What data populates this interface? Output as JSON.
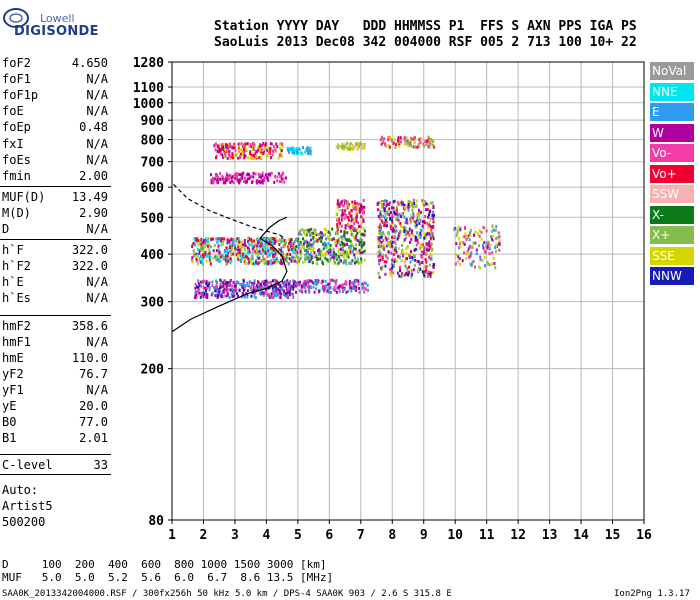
{
  "logo": {
    "top_text": "Lowell",
    "main_text": "DIGISONDE",
    "brand_color": "#1e3c8c"
  },
  "header": {
    "line1": "Station YYYY DAY   DDD HHMMSS P1  FFS S AXN PPS IGA PS",
    "line2": "SaoLuis 2013 Dec08 342 004000 RSF 005 2 713 100 10+ 22"
  },
  "params": [
    {
      "key": "foF2",
      "value": "4.650"
    },
    {
      "key": "foF1",
      "value": "N/A"
    },
    {
      "key": "foF1p",
      "value": "N/A"
    },
    {
      "key": "foE",
      "value": "N/A"
    },
    {
      "key": "foEp",
      "value": "0.48"
    },
    {
      "key": "fxI",
      "value": "N/A"
    },
    {
      "key": "foEs",
      "value": "N/A"
    },
    {
      "key": "fmin",
      "value": "2.00"
    },
    {
      "key": "MUF(D)",
      "value": "13.49"
    },
    {
      "key": "M(D)",
      "value": "2.90"
    },
    {
      "key": "D",
      "value": "N/A"
    },
    {
      "key": "h`F",
      "value": "322.0"
    },
    {
      "key": "h`F2",
      "value": "322.0"
    },
    {
      "key": "h`E",
      "value": "N/A"
    },
    {
      "key": "h`Es",
      "value": "N/A"
    },
    {
      "key": "hmF2",
      "value": "358.6"
    },
    {
      "key": "hmF1",
      "value": "N/A"
    },
    {
      "key": "hmE",
      "value": "110.0"
    },
    {
      "key": "yF2",
      "value": "76.7"
    },
    {
      "key": "yF1",
      "value": "N/A"
    },
    {
      "key": "yE",
      "value": "20.0"
    },
    {
      "key": "B0",
      "value": "77.0"
    },
    {
      "key": "B1",
      "value": "2.01"
    },
    {
      "key": "C-level",
      "value": "33"
    }
  ],
  "auto_block": {
    "line1": "Auto:",
    "line2": "Artist5",
    "line3": "500200"
  },
  "legend": [
    {
      "label": "NoVal",
      "color": "#9a9a9a"
    },
    {
      "label": "NNE",
      "color": "#00e5ee"
    },
    {
      "label": "E",
      "color": "#2e9bf0"
    },
    {
      "label": "W",
      "color": "#b0009f"
    },
    {
      "label": "Vo-",
      "color": "#f23ca7"
    },
    {
      "label": "Vo+",
      "color": "#ee0030"
    },
    {
      "label": "SSW",
      "color": "#f5b2b2"
    },
    {
      "label": "X-",
      "color": "#0d7a1a"
    },
    {
      "label": "X+",
      "color": "#84bd4b"
    },
    {
      "label": "SSE",
      "color": "#d5d500"
    },
    {
      "label": "NNW",
      "color": "#1a1ab6"
    }
  ],
  "footer": {
    "d_row": "D     100  200  400  600  800 1000 1500 3000 [km]",
    "muf_row": "MUF   5.0  5.0  5.2  5.6  6.0  6.7  8.6 13.5 [MHz]",
    "file_line": "SAA0K_2013342004000.RSF / 300fx256h 50 kHz 5.0 km / DPS-4 SAA0K 903 / 2.6 S 315.8 E",
    "version": "Ion2Png 1.3.17"
  },
  "chart_data": {
    "type": "scatter",
    "title": "",
    "xlabel": "",
    "ylabel": "",
    "xlim": [
      1,
      16
    ],
    "ylim": [
      80,
      1280
    ],
    "x_ticks": [
      1,
      2,
      3,
      4,
      5,
      6,
      7,
      8,
      9,
      10,
      11,
      12,
      13,
      14,
      15,
      16
    ],
    "y_ticks": [
      80,
      200,
      300,
      400,
      500,
      600,
      700,
      800,
      900,
      1000,
      1100,
      1280
    ],
    "y_scale": "log",
    "grid": true,
    "legend_position": "right",
    "trace_bands": [
      {
        "fmin": 1.7,
        "fmax": 4.9,
        "hmin": 310,
        "hmax": 345,
        "colors": [
          "#b0009f",
          "#f23ca7",
          "#2e9bf0",
          "#1a1ab6"
        ],
        "count": 360
      },
      {
        "fmin": 4.9,
        "fmax": 7.2,
        "hmin": 320,
        "hmax": 345,
        "colors": [
          "#b0009f",
          "#f23ca7",
          "#2e9bf0"
        ],
        "count": 160
      },
      {
        "fmin": 1.6,
        "fmax": 4.9,
        "hmin": 380,
        "hmax": 445,
        "colors": [
          "#ee0030",
          "#d5d500",
          "#84bd4b",
          "#b0009f",
          "#2e9bf0",
          "#00e5ee"
        ],
        "count": 520
      },
      {
        "fmin": 4.9,
        "fmax": 7.1,
        "hmin": 380,
        "hmax": 470,
        "colors": [
          "#d5d500",
          "#84bd4b",
          "#2e9bf0",
          "#b0009f",
          "#0d7a1a"
        ],
        "count": 360
      },
      {
        "fmin": 6.2,
        "fmax": 7.1,
        "hmin": 470,
        "hmax": 560,
        "colors": [
          "#ee0030",
          "#f23ca7",
          "#b0009f",
          "#d5d500"
        ],
        "count": 120
      },
      {
        "fmin": 7.5,
        "fmax": 9.3,
        "hmin": 350,
        "hmax": 560,
        "colors": [
          "#f23ca7",
          "#ee0030",
          "#d5d500",
          "#2e9bf0",
          "#b0009f",
          "#84bd4b",
          "#1a1ab6"
        ],
        "count": 520
      },
      {
        "fmin": 9.9,
        "fmax": 11.4,
        "hmin": 370,
        "hmax": 480,
        "colors": [
          "#d5d500",
          "#b0009f",
          "#2e9bf0",
          "#84bd4b",
          "#f23ca7"
        ],
        "count": 130
      },
      {
        "fmin": 2.2,
        "fmax": 4.6,
        "hmin": 620,
        "hmax": 660,
        "colors": [
          "#b0009f",
          "#f23ca7"
        ],
        "count": 150
      },
      {
        "fmin": 2.3,
        "fmax": 4.5,
        "hmin": 720,
        "hmax": 790,
        "colors": [
          "#b0009f",
          "#d5d500",
          "#f23ca7",
          "#ee0030"
        ],
        "count": 200
      },
      {
        "fmin": 4.6,
        "fmax": 5.4,
        "hmin": 740,
        "hmax": 770,
        "colors": [
          "#2e9bf0",
          "#00e5ee"
        ],
        "count": 40
      },
      {
        "fmin": 6.2,
        "fmax": 7.1,
        "hmin": 760,
        "hmax": 790,
        "colors": [
          "#d5d500",
          "#f5b2b2",
          "#84bd4b"
        ],
        "count": 60
      },
      {
        "fmin": 7.6,
        "fmax": 9.3,
        "hmin": 770,
        "hmax": 820,
        "colors": [
          "#d5d500",
          "#f23ca7",
          "#84bd4b",
          "#ee0030"
        ],
        "count": 90
      }
    ],
    "dashed_profile": [
      [
        1.05,
        610
      ],
      [
        1.5,
        560
      ],
      [
        2.2,
        520
      ],
      [
        3.0,
        490
      ],
      [
        3.6,
        470
      ],
      [
        4.0,
        460
      ],
      [
        4.4,
        450
      ],
      [
        4.6,
        440
      ]
    ],
    "solid_profile": [
      [
        1.0,
        250
      ],
      [
        1.6,
        270
      ],
      [
        2.5,
        292
      ],
      [
        3.4,
        315
      ],
      [
        4.0,
        325
      ],
      [
        4.5,
        340
      ],
      [
        4.65,
        360
      ],
      [
        4.5,
        395
      ],
      [
        4.2,
        420
      ],
      [
        3.8,
        440
      ],
      [
        4.1,
        470
      ],
      [
        4.4,
        490
      ],
      [
        4.65,
        500
      ]
    ]
  }
}
